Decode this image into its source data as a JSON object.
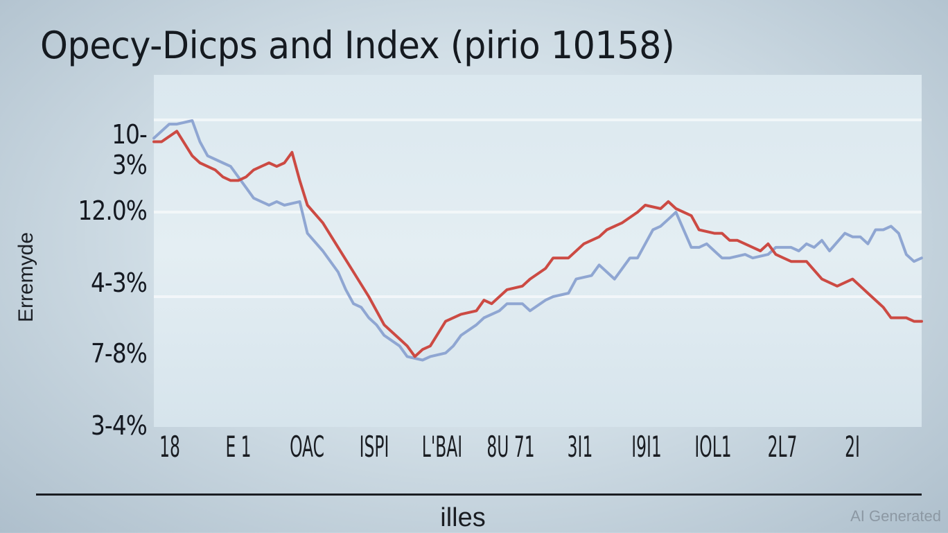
{
  "chart_data": {
    "type": "line",
    "title": "Opecy-Dicps and Index (pirio 10158)",
    "ylabel": "Erremyde",
    "xlabel": "illes",
    "yticks": [
      "10-3%",
      "12.0%",
      "4-3%",
      "7-8%",
      "3-4%"
    ],
    "xticks": [
      "18",
      "E 1",
      "OAC",
      "ISPI",
      "L'BAI",
      "8U 71",
      "3I1",
      "I9I1",
      "IOL1",
      "2L7",
      "2I"
    ],
    "ylim": [
      0,
      100
    ],
    "xlim": [
      0,
      100
    ],
    "grid": true,
    "series": [
      {
        "color": "#8fa6d2",
        "x": [
          0,
          2,
          3,
          5,
          6,
          7,
          9,
          10,
          11,
          12,
          13,
          15,
          16,
          17,
          19,
          20,
          22,
          23,
          24,
          25,
          26,
          27,
          28,
          29,
          30,
          32,
          33,
          35,
          36,
          38,
          39,
          40,
          42,
          43,
          45,
          46,
          48,
          49,
          51,
          52,
          54,
          55,
          57,
          58,
          60,
          61,
          62,
          63,
          64,
          65,
          66,
          67,
          68,
          70,
          71,
          72,
          73,
          74,
          75,
          77,
          78,
          80,
          81,
          83,
          84,
          85,
          86,
          87,
          88,
          90,
          91,
          92,
          93,
          94,
          95,
          96,
          97,
          98,
          99,
          100
        ],
        "y": [
          82,
          86,
          86,
          87,
          81,
          77,
          75,
          74,
          71,
          68,
          65,
          63,
          64,
          63,
          64,
          55,
          50,
          47,
          44,
          39,
          35,
          34,
          31,
          29,
          26,
          23,
          20,
          19,
          20,
          21,
          23,
          26,
          29,
          31,
          33,
          35,
          35,
          33,
          36,
          37,
          38,
          42,
          43,
          46,
          42,
          45,
          48,
          48,
          52,
          56,
          57,
          59,
          61,
          51,
          51,
          52,
          50,
          48,
          48,
          49,
          48,
          49,
          51,
          51,
          50,
          52,
          51,
          53,
          50,
          55,
          54,
          54,
          52,
          56,
          56,
          57,
          55,
          49,
          47,
          48
        ]
      },
      {
        "color": "#cc4a43",
        "x": [
          0,
          1,
          3,
          5,
          6,
          8,
          9,
          10,
          11,
          12,
          13,
          15,
          16,
          17,
          18,
          19,
          20,
          22,
          24,
          26,
          28,
          30,
          32,
          33,
          34,
          35,
          36,
          38,
          40,
          42,
          43,
          44,
          46,
          48,
          49,
          51,
          52,
          54,
          56,
          58,
          59,
          61,
          63,
          64,
          66,
          67,
          68,
          70,
          71,
          73,
          74,
          75,
          76,
          78,
          79,
          80,
          81,
          82,
          83,
          85,
          87,
          88,
          89,
          90,
          91,
          92,
          93,
          95,
          96,
          98,
          99,
          100
        ],
        "y": [
          81,
          81,
          84,
          77,
          75,
          73,
          71,
          70,
          70,
          71,
          73,
          75,
          74,
          75,
          78,
          70,
          63,
          58,
          51,
          44,
          37,
          29,
          25,
          23,
          20,
          22,
          23,
          30,
          32,
          33,
          36,
          35,
          39,
          40,
          42,
          45,
          48,
          48,
          52,
          54,
          56,
          58,
          61,
          63,
          62,
          64,
          62,
          60,
          56,
          55,
          55,
          53,
          53,
          51,
          50,
          52,
          49,
          48,
          47,
          47,
          42,
          41,
          40,
          41,
          42,
          40,
          38,
          34,
          31,
          31,
          30,
          30
        ]
      }
    ]
  },
  "watermark": "AI Generated"
}
